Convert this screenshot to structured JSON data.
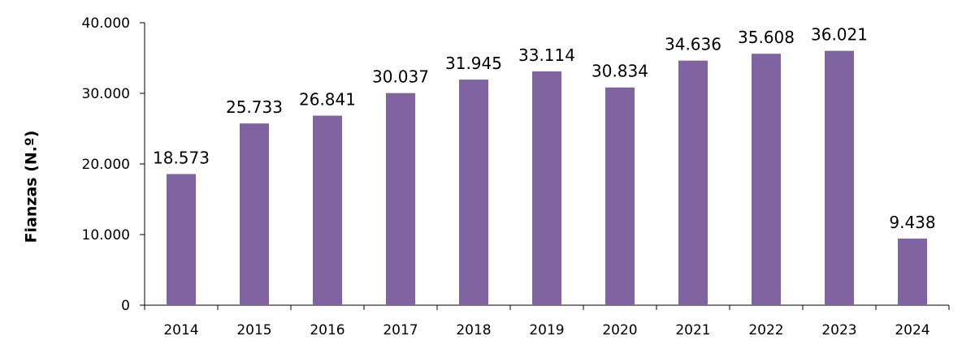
{
  "chart_data": {
    "type": "bar",
    "title": "",
    "xlabel": "",
    "ylabel": "Fianzas (N.º)",
    "categories": [
      "2014",
      "2015",
      "2016",
      "2017",
      "2018",
      "2019",
      "2020",
      "2021",
      "2022",
      "2023",
      "2024"
    ],
    "values": [
      18573,
      25733,
      26841,
      30037,
      31945,
      33114,
      30834,
      34636,
      35608,
      36021,
      9438
    ],
    "value_labels": [
      "18.573",
      "25.733",
      "26.841",
      "30.037",
      "31.945",
      "33.114",
      "30.834",
      "34.636",
      "35.608",
      "36.021",
      "9.438"
    ],
    "ylim": [
      0,
      40000
    ],
    "yticks": [
      0,
      10000,
      20000,
      30000,
      40000
    ],
    "ytick_labels": [
      "0",
      "10.000",
      "20.000",
      "30.000",
      "40.000"
    ],
    "grid": false,
    "bar_color": "#8064a2"
  }
}
